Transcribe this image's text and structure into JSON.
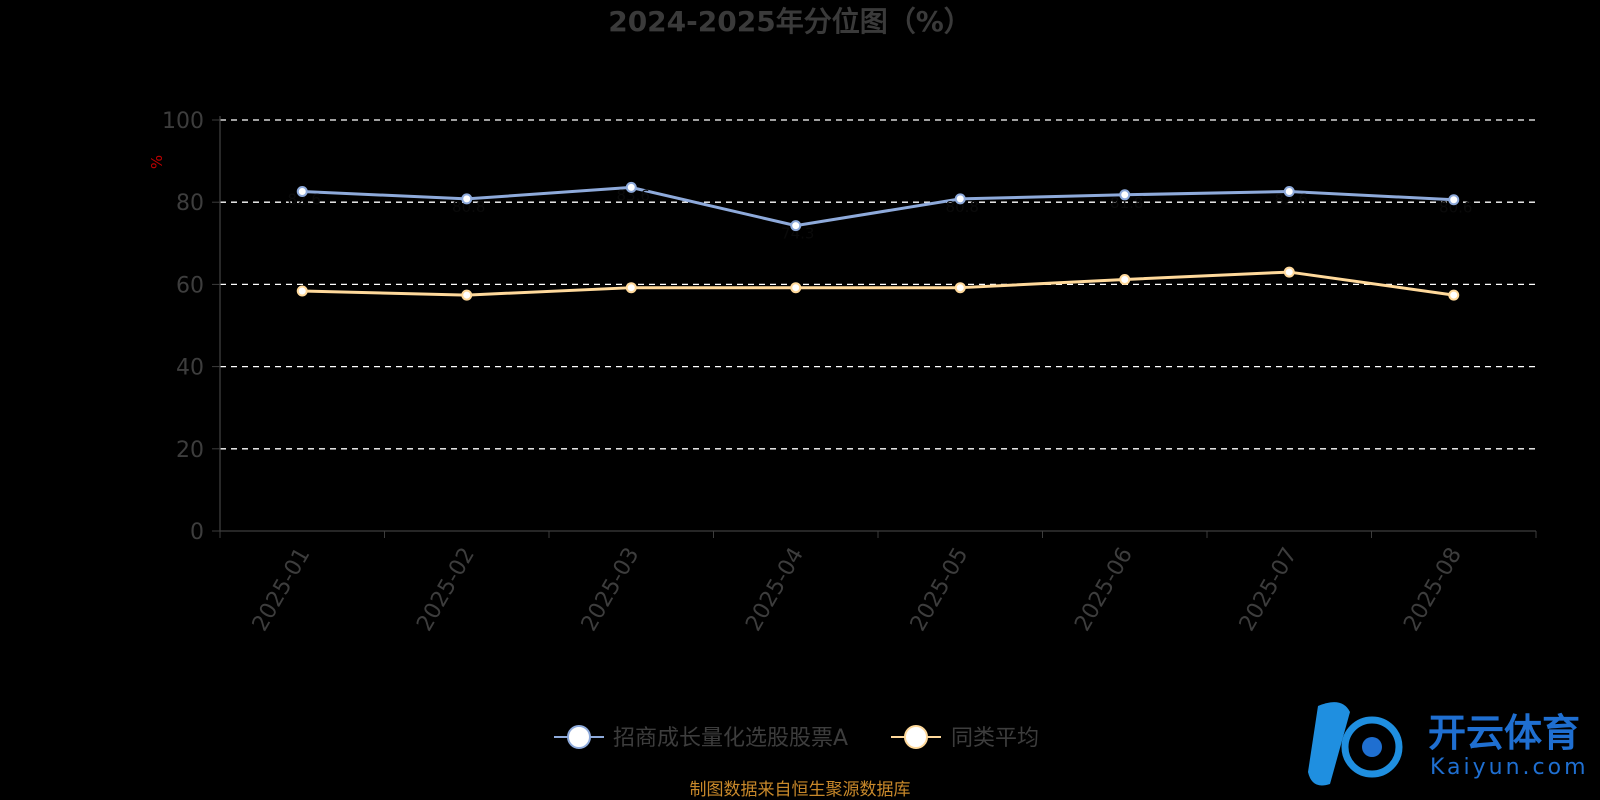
{
  "chart_data": {
    "type": "line",
    "title": "2024-2025年分位图（%）",
    "ylabel": "%",
    "ylim": [
      0,
      100
    ],
    "yticks": [
      0,
      20,
      40,
      60,
      80,
      100
    ],
    "categories": [
      "2025-01",
      "2025-02",
      "2025-03",
      "2025-04",
      "2025-05",
      "2025-06",
      "2025-07",
      "2025-08"
    ],
    "series": [
      {
        "name": "招商成长量化选股股票A",
        "color": "#8eaadb",
        "values": [
          82.6,
          80.8,
          83.6,
          74.3,
          80.8,
          81.8,
          82.6,
          80.6
        ],
        "labels": [
          "82.6",
          "80.8",
          "83.6",
          "74.3",
          "80.8",
          "81.8",
          "82.6",
          "80.6"
        ]
      },
      {
        "name": "同类平均",
        "color": "#ffd99b",
        "values": [
          58.4,
          57.4,
          59.2,
          59.2,
          59.2,
          61.2,
          63.0,
          57.4
        ]
      }
    ],
    "grid": true,
    "grid_style": "dashed",
    "legend_position": "bottom-center",
    "source": "制图数据来自恒生聚源数据库"
  },
  "watermark": {
    "text_cn": "开云体育",
    "text_en": "Kaiyun.com",
    "color": "#1f6fd1"
  }
}
